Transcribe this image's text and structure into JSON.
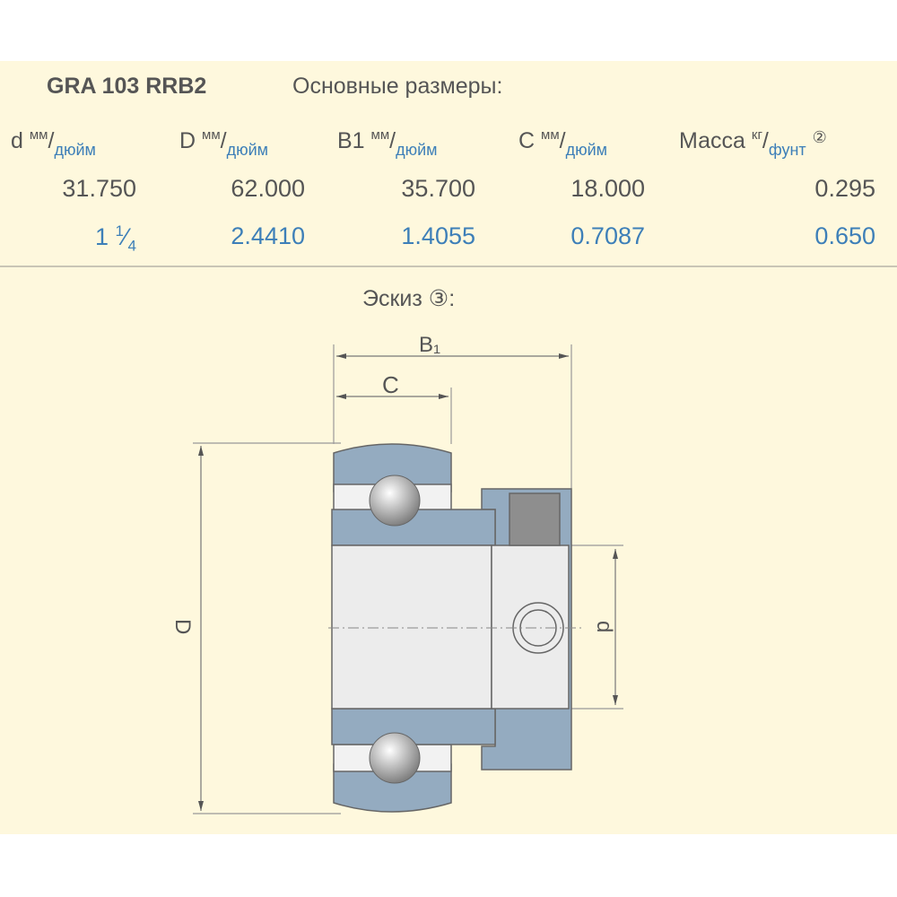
{
  "header": {
    "model": "GRA 103 RRB2",
    "subtitle": "Основные размеры:"
  },
  "columns": [
    {
      "sym": "d",
      "unit_top": "мм",
      "unit_bottom": "дюйм",
      "mm": "31.750",
      "inch_whole": "1",
      "inch_frac_num": "1",
      "inch_frac_den": "4"
    },
    {
      "sym": "D",
      "unit_top": "мм",
      "unit_bottom": "дюйм",
      "mm": "62.000",
      "inch": "2.4410"
    },
    {
      "sym": "B1",
      "unit_top": "мм",
      "unit_bottom": "дюйм",
      "mm": "35.700",
      "inch": "1.4055"
    },
    {
      "sym": "C",
      "unit_top": "мм",
      "unit_bottom": "дюйм",
      "mm": "18.000",
      "inch": "0.7087"
    },
    {
      "sym": "Масса",
      "unit_top": "кг",
      "unit_bottom": "фунт",
      "note": "②",
      "mm": "0.295",
      "inch": "0.650"
    }
  ],
  "sketch": {
    "title": "Эскиз ③:",
    "labels": {
      "B1": "B₁",
      "C": "C",
      "D": "D",
      "d": "d"
    }
  },
  "colors": {
    "background": "#fef8dd",
    "ring": "#94abc0",
    "bore": "#ececec",
    "inch_text": "#3d7fb8"
  }
}
